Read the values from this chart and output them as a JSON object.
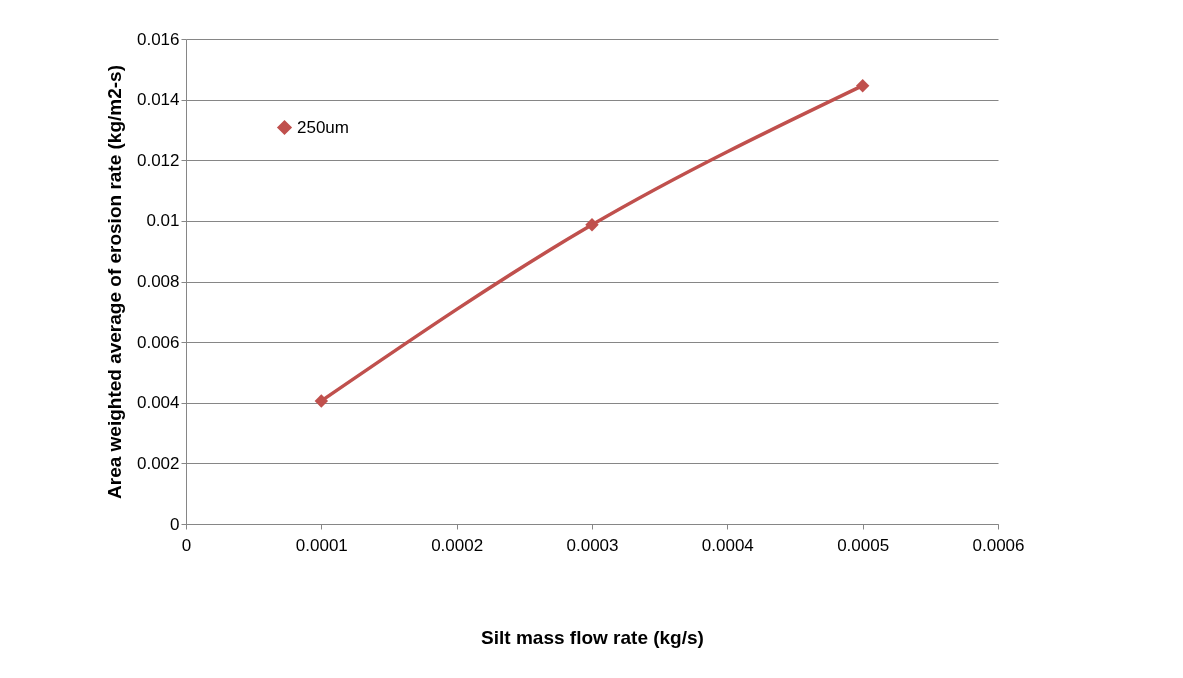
{
  "chart_data": {
    "type": "line",
    "xlabel": "Silt mass flow rate (kg/s)",
    "ylabel": "Area weighted average of erosion rate (kg/m2-s)",
    "x": [
      0.0001,
      0.0003,
      0.0005
    ],
    "series": [
      {
        "name": "250um",
        "color": "#c0504d",
        "values": [
          0.00406,
          0.00987,
          0.01446
        ]
      }
    ],
    "xlim": [
      0,
      0.0006
    ],
    "xticks": [
      0,
      0.0001,
      0.0002,
      0.0003,
      0.0004,
      0.0005,
      0.0006
    ],
    "ylim": [
      0,
      0.016
    ],
    "yticks": [
      0,
      0.002,
      0.004,
      0.006,
      0.008,
      0.01,
      0.012,
      0.014,
      0.016
    ],
    "grid": "y",
    "legend": "top left",
    "marker": "diamond",
    "line_style": "solid"
  }
}
